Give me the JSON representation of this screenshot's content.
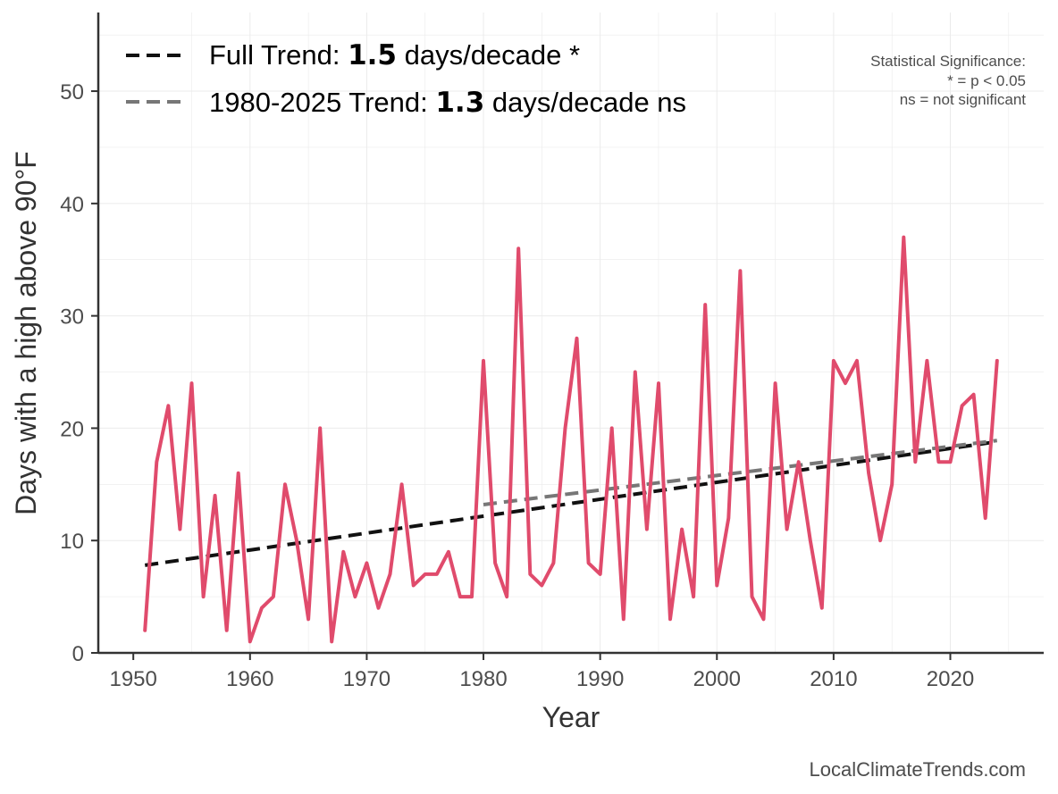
{
  "chart_data": {
    "type": "line",
    "xlabel": "Year",
    "ylabel": "Days with a high above 90°F",
    "xlim": [
      1947,
      2028
    ],
    "ylim": [
      0,
      57
    ],
    "xticks": [
      1950,
      1960,
      1970,
      1980,
      1990,
      2000,
      2010,
      2020
    ],
    "yticks": [
      0,
      10,
      20,
      30,
      40,
      50
    ],
    "grid": true,
    "series": [
      {
        "name": "Days above 90°F",
        "color": "#e04b6c",
        "x": [
          1951,
          1952,
          1953,
          1954,
          1955,
          1956,
          1957,
          1958,
          1959,
          1960,
          1961,
          1962,
          1963,
          1964,
          1965,
          1966,
          1967,
          1968,
          1969,
          1970,
          1971,
          1972,
          1973,
          1974,
          1975,
          1976,
          1977,
          1978,
          1979,
          1980,
          1981,
          1982,
          1983,
          1984,
          1985,
          1986,
          1987,
          1988,
          1989,
          1990,
          1991,
          1992,
          1993,
          1994,
          1995,
          1996,
          1997,
          1998,
          1999,
          2000,
          2001,
          2002,
          2003,
          2004,
          2005,
          2006,
          2007,
          2008,
          2009,
          2010,
          2011,
          2012,
          2013,
          2014,
          2015,
          2016,
          2017,
          2018,
          2019,
          2020,
          2021,
          2022,
          2023,
          2024
        ],
        "values": [
          2,
          17,
          22,
          11,
          24,
          5,
          14,
          2,
          16,
          1,
          4,
          5,
          15,
          10,
          3,
          20,
          1,
          9,
          5,
          8,
          4,
          7,
          15,
          6,
          7,
          7,
          9,
          5,
          5,
          26,
          8,
          5,
          36,
          7,
          6,
          8,
          20,
          28,
          8,
          7,
          20,
          3,
          25,
          11,
          24,
          3,
          11,
          5,
          31,
          6,
          12,
          34,
          5,
          3,
          24,
          11,
          17,
          10,
          4,
          26,
          24,
          26,
          16,
          10,
          15,
          37,
          17,
          26,
          17,
          17,
          22,
          23,
          12,
          26
        ]
      }
    ],
    "trends": [
      {
        "name": "Full Trend",
        "color": "#111111",
        "x": [
          1951,
          2024
        ],
        "values": [
          7.8,
          18.8
        ]
      },
      {
        "name": "1980-2025 Trend",
        "color": "#777777",
        "x": [
          1980,
          2024
        ],
        "values": [
          13.2,
          18.9
        ]
      }
    ],
    "legend": {
      "position": "top-left",
      "entries": [
        {
          "prefix": "Full Trend: ",
          "value": "1.5",
          "suffix": " days/decade *"
        },
        {
          "prefix": "1980-2025 Trend: ",
          "value": "1.3",
          "suffix": " days/decade ns"
        }
      ]
    },
    "annotation": {
      "position": "top-right",
      "lines": [
        "Statistical Significance:",
        "* = p < 0.05",
        "ns = not significant"
      ]
    },
    "credit": "LocalClimateTrends.com"
  }
}
